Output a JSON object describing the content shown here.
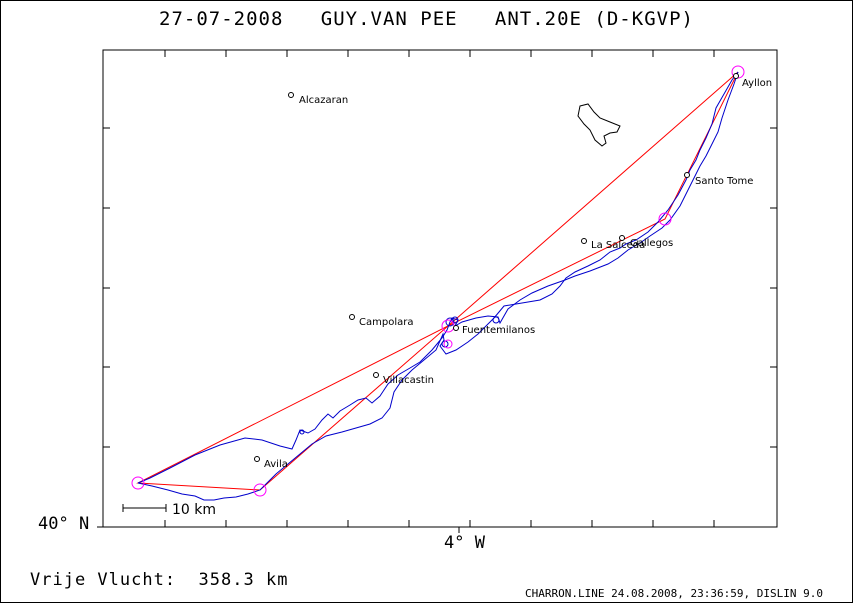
{
  "header": {
    "date": "27-07-2008",
    "pilot": "GUY.VAN PEE",
    "aircraft": "ANT.20E (D-KGVP)"
  },
  "axes": {
    "lat_label": "40° N",
    "lon_label": "4° W"
  },
  "scale_bar": {
    "label": "10 km"
  },
  "places": [
    {
      "name": "Alcazaran"
    },
    {
      "name": "Ayllon"
    },
    {
      "name": "Santo Tome"
    },
    {
      "name": "La Salceda"
    },
    {
      "name": "Gallegos"
    },
    {
      "name": "Campolara"
    },
    {
      "name": "Fuentemilanos"
    },
    {
      "name": "Villacastin"
    },
    {
      "name": "Avila"
    }
  ],
  "footer": {
    "distance_label": "Vrije Vlucht:",
    "distance_value": "358.3 km",
    "credits": "CHARRON.LINE 24.08.2008, 23:36:59, DISLIN 9.0"
  },
  "colors": {
    "task_line": "#ff0000",
    "track_line": "#0000cc",
    "turnpoint": "#ff00ff",
    "frame": "#000000"
  }
}
